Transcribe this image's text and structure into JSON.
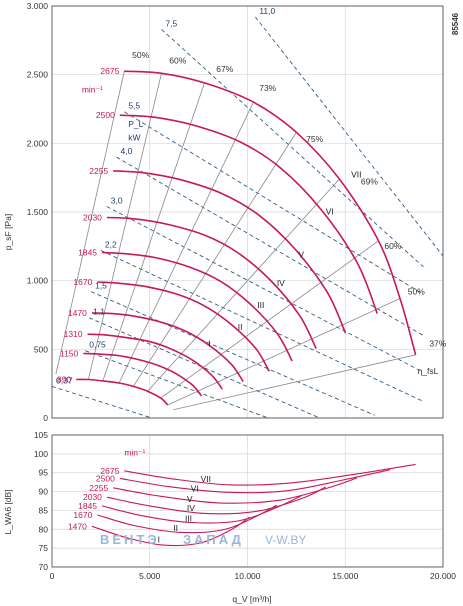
{
  "figure_ref": "85546",
  "watermark": {
    "left": "ВЕНТЭ",
    "mid": "ЗАПАД",
    "right": "V-W.BY"
  },
  "chart_data": [
    {
      "type": "line",
      "title": "",
      "xlabel": "q_V [m³/h]",
      "ylabel": "p_sF [Pa]",
      "xlim": [
        0,
        20000
      ],
      "ylim": [
        0,
        3000
      ],
      "x_ticks": [
        0,
        5000,
        10000,
        15000,
        20000
      ],
      "x_tick_labels": [
        "0",
        "5.000",
        "10.000",
        "15.000",
        "20.000"
      ],
      "y_ticks": [
        0,
        500,
        1000,
        1500,
        2000,
        2500,
        3000
      ],
      "y_tick_labels": [
        "0",
        "500",
        "1.000",
        "1.500",
        "2.000",
        "2.500",
        "3.000"
      ],
      "grid": true,
      "speed_unit": "min⁻¹",
      "power_label": "P_L",
      "power_unit": "kW",
      "efficiency_curve_label": "η_fsL",
      "speed_curves": [
        {
          "rpm": "2675",
          "x": [
            3700,
            5600,
            7800,
            10300,
            12500,
            14700,
            16700,
            17800,
            18600
          ],
          "y": [
            2525,
            2510,
            2440,
            2300,
            2080,
            1740,
            1290,
            870,
            460
          ]
        },
        {
          "rpm": "2500",
          "x": [
            3470,
            5240,
            7300,
            9630,
            11700,
            13750,
            15610,
            16640
          ],
          "y": [
            2205,
            2190,
            2130,
            2010,
            1820,
            1520,
            1130,
            760
          ]
        },
        {
          "rpm": "2255",
          "x": [
            3130,
            4730,
            6580,
            8680,
            10550,
            12400,
            14080,
            15010
          ],
          "y": [
            1800,
            1785,
            1735,
            1635,
            1480,
            1235,
            915,
            620
          ]
        },
        {
          "rpm": "2030",
          "x": [
            2810,
            4250,
            5920,
            7820,
            9490,
            11160,
            12670,
            13510
          ],
          "y": [
            1460,
            1450,
            1410,
            1330,
            1205,
            1005,
            745,
            505
          ]
        },
        {
          "rpm": "1845",
          "x": [
            2560,
            3870,
            5380,
            7110,
            8630,
            10140,
            11520,
            12280
          ],
          "y": [
            1205,
            1195,
            1165,
            1095,
            995,
            830,
            615,
            415
          ]
        },
        {
          "rpm": "1670",
          "x": [
            2320,
            3500,
            4870,
            6430,
            7810,
            9180,
            10430,
            11110
          ],
          "y": [
            990,
            980,
            955,
            900,
            815,
            680,
            505,
            340
          ]
        },
        {
          "rpm": "1470",
          "x": [
            2040,
            3080,
            4290,
            5660,
            6870,
            8080,
            9180,
            9780
          ],
          "y": [
            765,
            760,
            740,
            695,
            630,
            525,
            390,
            265
          ]
        },
        {
          "rpm": "1310",
          "x": [
            1820,
            2740,
            3820,
            5040,
            6130,
            7200,
            8180,
            8710
          ],
          "y": [
            610,
            605,
            585,
            555,
            500,
            420,
            310,
            210
          ]
        },
        {
          "rpm": "1150",
          "x": [
            1600,
            2410,
            3360,
            4430,
            5380,
            6320,
            7180,
            7650
          ],
          "y": [
            470,
            465,
            455,
            425,
            385,
            325,
            240,
            160
          ]
        },
        {
          "rpm": "890",
          "x": [
            1240,
            1860,
            2600,
            3430,
            4160,
            4890,
            5560,
            5920
          ],
          "y": [
            280,
            280,
            270,
            255,
            230,
            195,
            145,
            95
          ]
        }
      ],
      "power_lines": [
        {
          "label": "0,37",
          "x": [
            0,
            8000
          ],
          "y": [
            230,
            -130
          ]
        },
        {
          "label": "0,75",
          "x": [
            1700,
            12200
          ],
          "y": [
            490,
            -60
          ]
        },
        {
          "label": "1,1",
          "x": [
            1900,
            14500
          ],
          "y": [
            730,
            -50
          ]
        },
        {
          "label": "1,5",
          "x": [
            2000,
            16500
          ],
          "y": [
            920,
            20
          ]
        },
        {
          "label": "2,2",
          "x": [
            2500,
            19000
          ],
          "y": [
            1220,
            120
          ]
        },
        {
          "label": "3,0",
          "x": [
            2800,
            18900
          ],
          "y": [
            1540,
            340
          ]
        },
        {
          "label": "4,0",
          "x": [
            3300,
            19000
          ],
          "y": [
            1900,
            600
          ]
        },
        {
          "label": "5,5",
          "x": [
            3700,
            19000
          ],
          "y": [
            2230,
            900
          ]
        },
        {
          "label": "7,5",
          "x": [
            5600,
            19000
          ],
          "y": [
            2830,
            1100
          ]
        },
        {
          "label": "11,0",
          "x": [
            10400,
            20000
          ],
          "y": [
            2920,
            1180
          ]
        }
      ],
      "efficiency_lines": [
        {
          "label": "50%",
          "x": [
            3700,
            200
          ],
          "y": [
            2525,
            320
          ]
        },
        {
          "label": "60%",
          "x": [
            5600,
            1860
          ],
          "y": [
            2510,
            280
          ]
        },
        {
          "label": "67%",
          "x": [
            7800,
            2600
          ],
          "y": [
            2440,
            270
          ]
        },
        {
          "label": "73%",
          "x": [
            10300,
            3430
          ],
          "y": [
            2300,
            255
          ]
        },
        {
          "label": "75%",
          "x": [
            12500,
            4160
          ],
          "y": [
            2080,
            230
          ]
        },
        {
          "label": "69%",
          "x": [
            14700,
            4890
          ],
          "y": [
            1740,
            195
          ]
        },
        {
          "label": "60%",
          "x": [
            16700,
            5560
          ],
          "y": [
            1290,
            145
          ]
        },
        {
          "label": "50%",
          "x": [
            17800,
            5920
          ],
          "y": [
            870,
            95
          ]
        },
        {
          "label": "37%",
          "x": [
            18600,
            6200
          ],
          "y": [
            460,
            60
          ]
        }
      ],
      "operating_ranges": [
        "I",
        "II",
        "III",
        "IV",
        "V",
        "VI",
        "VII"
      ]
    },
    {
      "type": "line",
      "title": "",
      "xlabel": "q_V [m³/h]",
      "ylabel": "L_WA6 [dB]",
      "xlim": [
        0,
        20000
      ],
      "ylim": [
        70,
        105
      ],
      "x_ticks": [
        0,
        5000,
        10000,
        15000,
        20000
      ],
      "x_tick_labels": [
        "0",
        "5.000",
        "10.000",
        "15.000",
        "20.000"
      ],
      "y_ticks": [
        70,
        75,
        80,
        85,
        90,
        95,
        100,
        105
      ],
      "y_tick_labels": [
        "70",
        "75",
        "80",
        "85",
        "90",
        "95",
        "100",
        "105"
      ],
      "grid": true,
      "speed_unit": "min⁻¹",
      "rpm_labels": [
        "2675",
        "2500",
        "2255",
        "2030",
        "1845",
        "1670",
        "1470"
      ],
      "sound_curves": [
        {
          "rpm": "2675",
          "x": [
            3700,
            6000,
            9000,
            12000,
            15000,
            18600
          ],
          "y": [
            95.5,
            93.5,
            91.8,
            92.2,
            94.2,
            97.2
          ]
        },
        {
          "rpm": "2500",
          "x": [
            3470,
            6000,
            9000,
            12000,
            15000,
            17300
          ],
          "y": [
            93.5,
            91.3,
            89.8,
            90.2,
            93.2,
            95.8
          ]
        },
        {
          "rpm": "2255",
          "x": [
            3130,
            5500,
            8500,
            11500,
            14000,
            15600
          ],
          "y": [
            91.0,
            88.8,
            87.0,
            87.6,
            90.8,
            93.6
          ]
        },
        {
          "rpm": "2030",
          "x": [
            2810,
            5000,
            7800,
            10500,
            12800,
            14000
          ],
          "y": [
            88.5,
            86.2,
            84.2,
            84.8,
            88.2,
            91.2
          ]
        },
        {
          "rpm": "1845",
          "x": [
            2560,
            4600,
            7100,
            9500,
            11500,
            12800
          ],
          "y": [
            86.2,
            83.6,
            81.8,
            82.2,
            85.8,
            89.0
          ]
        },
        {
          "rpm": "1670",
          "x": [
            2320,
            4200,
            6500,
            8700,
            10400,
            11500
          ],
          "y": [
            83.8,
            81.0,
            79.2,
            79.8,
            83.3,
            86.4
          ]
        },
        {
          "rpm": "1470",
          "x": [
            2040,
            3800,
            5700,
            7600,
            9200,
            10100
          ],
          "y": [
            80.8,
            77.8,
            75.8,
            76.4,
            80.0,
            83.2
          ]
        }
      ],
      "operating_ranges": [
        "I",
        "II",
        "III",
        "IV",
        "V",
        "VI",
        "VII"
      ]
    }
  ]
}
